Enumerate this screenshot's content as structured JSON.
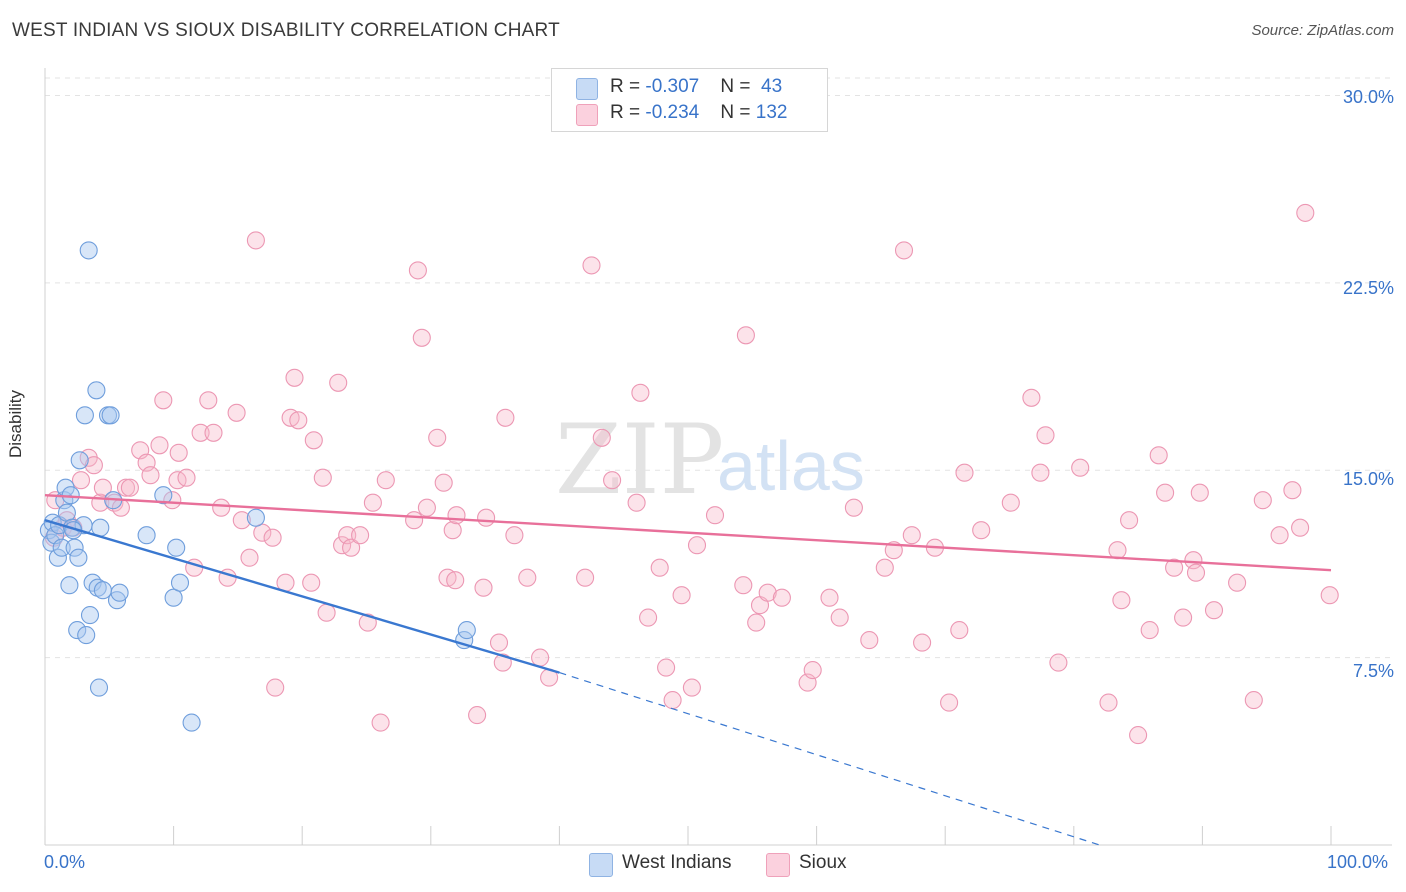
{
  "title": "WEST INDIAN VS SIOUX DISABILITY CORRELATION CHART",
  "source": "Source: ZipAtlas.com",
  "watermark": {
    "zip": "ZIP",
    "atlas": "atlas"
  },
  "legend": {
    "rows": [
      {
        "r_label": "R = ",
        "r_value": "-0.307",
        "n_label": "N = ",
        "n_value": "43",
        "color": "#a9c8f0"
      },
      {
        "r_label": "R = ",
        "r_value": "-0.234",
        "n_label": "N = ",
        "n_value": "132",
        "color": "#f7b8cb"
      }
    ]
  },
  "bottom_legend": [
    {
      "label": "West Indians",
      "color": "#a9c8f0"
    },
    {
      "label": "Sioux",
      "color": "#f7b8cb"
    }
  ],
  "x_axis": {
    "min_label": "0.0%",
    "max_label": "100.0%"
  },
  "y_axis": {
    "label": "Disability",
    "ticks": [
      "30.0%",
      "22.5%",
      "15.0%",
      "7.5%"
    ]
  },
  "colors": {
    "blue": "#3a78d0",
    "pink": "#e8709a",
    "blue_fill": "#a9c8f0",
    "pink_fill": "#f7b8cb"
  },
  "chart_data": {
    "type": "scatter",
    "title": "WEST INDIAN VS SIOUX DISABILITY CORRELATION CHART",
    "xlabel": "",
    "ylabel": "Disability",
    "xlim": [
      0,
      100
    ],
    "ylim": [
      0,
      30.7
    ],
    "yticks": [
      7.5,
      15.0,
      22.5,
      30.0
    ],
    "grid": true,
    "legend_position": "top-center",
    "series": [
      {
        "name": "West Indians",
        "color": "#a9c8f0",
        "r": -0.307,
        "n": 43,
        "trend": {
          "x0": 0,
          "y0": 13.0,
          "x1": 40,
          "y1": 6.9,
          "dashed_to": [
            82,
            0
          ]
        },
        "points": [
          [
            0.3,
            12.6
          ],
          [
            0.5,
            12.1
          ],
          [
            0.6,
            12.9
          ],
          [
            0.8,
            12.4
          ],
          [
            1.0,
            11.5
          ],
          [
            1.1,
            12.8
          ],
          [
            1.3,
            11.9
          ],
          [
            1.5,
            13.8
          ],
          [
            1.6,
            14.3
          ],
          [
            1.7,
            13.3
          ],
          [
            1.9,
            10.4
          ],
          [
            2.0,
            14.0
          ],
          [
            2.1,
            12.7
          ],
          [
            2.3,
            11.9
          ],
          [
            2.5,
            8.6
          ],
          [
            2.6,
            11.5
          ],
          [
            2.7,
            15.4
          ],
          [
            3.0,
            12.8
          ],
          [
            3.1,
            17.2
          ],
          [
            3.2,
            8.4
          ],
          [
            3.4,
            23.8
          ],
          [
            3.5,
            9.2
          ],
          [
            3.7,
            10.5
          ],
          [
            4.1,
            10.3
          ],
          [
            4.2,
            6.3
          ],
          [
            4.3,
            12.7
          ],
          [
            4.5,
            10.2
          ],
          [
            4.9,
            17.2
          ],
          [
            5.1,
            17.2
          ],
          [
            5.3,
            13.8
          ],
          [
            5.6,
            9.8
          ],
          [
            5.8,
            10.1
          ],
          [
            4.0,
            18.2
          ],
          [
            7.9,
            12.4
          ],
          [
            9.2,
            14.0
          ],
          [
            10.0,
            9.9
          ],
          [
            10.2,
            11.9
          ],
          [
            10.5,
            10.5
          ],
          [
            11.4,
            4.9
          ],
          [
            16.4,
            13.1
          ],
          [
            32.6,
            8.2
          ],
          [
            32.8,
            8.6
          ],
          [
            2.2,
            12.6
          ]
        ]
      },
      {
        "name": "Sioux",
        "color": "#f7b8cb",
        "r": -0.234,
        "n": 132,
        "trend": {
          "x0": 0,
          "y0": 14.0,
          "x1": 100,
          "y1": 11.0
        },
        "points": [
          [
            0.7,
            12.3
          ],
          [
            0.8,
            13.8
          ],
          [
            1.4,
            12.7
          ],
          [
            1.7,
            13.0
          ],
          [
            2.2,
            12.7
          ],
          [
            2.8,
            14.6
          ],
          [
            3.4,
            15.5
          ],
          [
            3.8,
            15.2
          ],
          [
            4.3,
            13.7
          ],
          [
            4.5,
            14.3
          ],
          [
            5.4,
            13.7
          ],
          [
            5.9,
            13.5
          ],
          [
            6.3,
            14.3
          ],
          [
            6.6,
            14.3
          ],
          [
            7.4,
            15.8
          ],
          [
            7.9,
            15.3
          ],
          [
            8.2,
            14.8
          ],
          [
            8.9,
            16.0
          ],
          [
            9.2,
            17.8
          ],
          [
            9.9,
            13.8
          ],
          [
            10.3,
            14.6
          ],
          [
            10.4,
            15.7
          ],
          [
            11.0,
            14.7
          ],
          [
            11.6,
            11.1
          ],
          [
            12.1,
            16.5
          ],
          [
            12.7,
            17.8
          ],
          [
            13.1,
            16.5
          ],
          [
            13.7,
            13.5
          ],
          [
            14.2,
            10.7
          ],
          [
            14.9,
            17.3
          ],
          [
            15.3,
            13.0
          ],
          [
            15.9,
            11.5
          ],
          [
            16.4,
            24.2
          ],
          [
            16.9,
            12.5
          ],
          [
            17.7,
            12.3
          ],
          [
            17.9,
            6.3
          ],
          [
            18.7,
            10.5
          ],
          [
            19.1,
            17.1
          ],
          [
            19.4,
            18.7
          ],
          [
            19.7,
            17.0
          ],
          [
            20.7,
            10.5
          ],
          [
            20.9,
            16.2
          ],
          [
            21.6,
            14.7
          ],
          [
            21.9,
            9.3
          ],
          [
            22.8,
            18.5
          ],
          [
            23.1,
            12.0
          ],
          [
            23.5,
            12.4
          ],
          [
            23.8,
            11.9
          ],
          [
            24.5,
            12.4
          ],
          [
            25.1,
            8.9
          ],
          [
            25.5,
            13.7
          ],
          [
            26.1,
            4.9
          ],
          [
            26.5,
            14.6
          ],
          [
            28.7,
            13.0
          ],
          [
            29.0,
            23.0
          ],
          [
            29.3,
            20.3
          ],
          [
            29.7,
            13.5
          ],
          [
            30.5,
            16.3
          ],
          [
            31.0,
            14.5
          ],
          [
            31.3,
            10.7
          ],
          [
            31.7,
            12.6
          ],
          [
            31.9,
            10.6
          ],
          [
            32.0,
            13.2
          ],
          [
            33.6,
            5.2
          ],
          [
            34.1,
            10.3
          ],
          [
            34.3,
            13.1
          ],
          [
            35.3,
            8.1
          ],
          [
            35.6,
            7.3
          ],
          [
            35.8,
            17.1
          ],
          [
            36.5,
            12.4
          ],
          [
            37.5,
            10.7
          ],
          [
            38.5,
            7.5
          ],
          [
            39.2,
            6.7
          ],
          [
            42.0,
            10.7
          ],
          [
            42.5,
            23.2
          ],
          [
            43.3,
            16.3
          ],
          [
            44.1,
            14.6
          ],
          [
            46.3,
            18.1
          ],
          [
            46.0,
            13.7
          ],
          [
            46.9,
            9.1
          ],
          [
            47.8,
            11.1
          ],
          [
            48.3,
            7.1
          ],
          [
            48.8,
            5.8
          ],
          [
            49.5,
            10.0
          ],
          [
            50.3,
            6.3
          ],
          [
            50.7,
            12.0
          ],
          [
            52.1,
            13.2
          ],
          [
            54.3,
            10.4
          ],
          [
            54.5,
            20.4
          ],
          [
            55.3,
            8.9
          ],
          [
            55.6,
            9.6
          ],
          [
            56.2,
            10.1
          ],
          [
            57.3,
            9.9
          ],
          [
            59.3,
            6.5
          ],
          [
            59.7,
            7.0
          ],
          [
            61.0,
            9.9
          ],
          [
            61.8,
            9.1
          ],
          [
            62.9,
            13.5
          ],
          [
            64.1,
            8.2
          ],
          [
            65.3,
            11.1
          ],
          [
            66.0,
            11.8
          ],
          [
            66.8,
            23.8
          ],
          [
            67.4,
            12.4
          ],
          [
            68.2,
            8.1
          ],
          [
            69.2,
            11.9
          ],
          [
            70.3,
            5.7
          ],
          [
            71.1,
            8.6
          ],
          [
            71.5,
            14.9
          ],
          [
            72.8,
            12.6
          ],
          [
            75.1,
            13.7
          ],
          [
            76.7,
            17.9
          ],
          [
            77.4,
            14.9
          ],
          [
            77.8,
            16.4
          ],
          [
            78.8,
            7.3
          ],
          [
            80.5,
            15.1
          ],
          [
            82.7,
            5.7
          ],
          [
            83.4,
            11.8
          ],
          [
            83.7,
            9.8
          ],
          [
            84.3,
            13.0
          ],
          [
            85.0,
            4.4
          ],
          [
            85.9,
            8.6
          ],
          [
            86.6,
            15.6
          ],
          [
            87.1,
            14.1
          ],
          [
            87.8,
            11.1
          ],
          [
            88.5,
            9.1
          ],
          [
            89.3,
            11.4
          ],
          [
            89.5,
            10.9
          ],
          [
            89.8,
            14.1
          ],
          [
            90.9,
            9.4
          ],
          [
            92.7,
            10.5
          ],
          [
            94.0,
            5.8
          ],
          [
            94.7,
            13.8
          ],
          [
            96.0,
            12.4
          ],
          [
            97.0,
            14.2
          ],
          [
            97.6,
            12.7
          ],
          [
            98.0,
            25.3
          ],
          [
            99.9,
            10.0
          ]
        ]
      }
    ]
  }
}
